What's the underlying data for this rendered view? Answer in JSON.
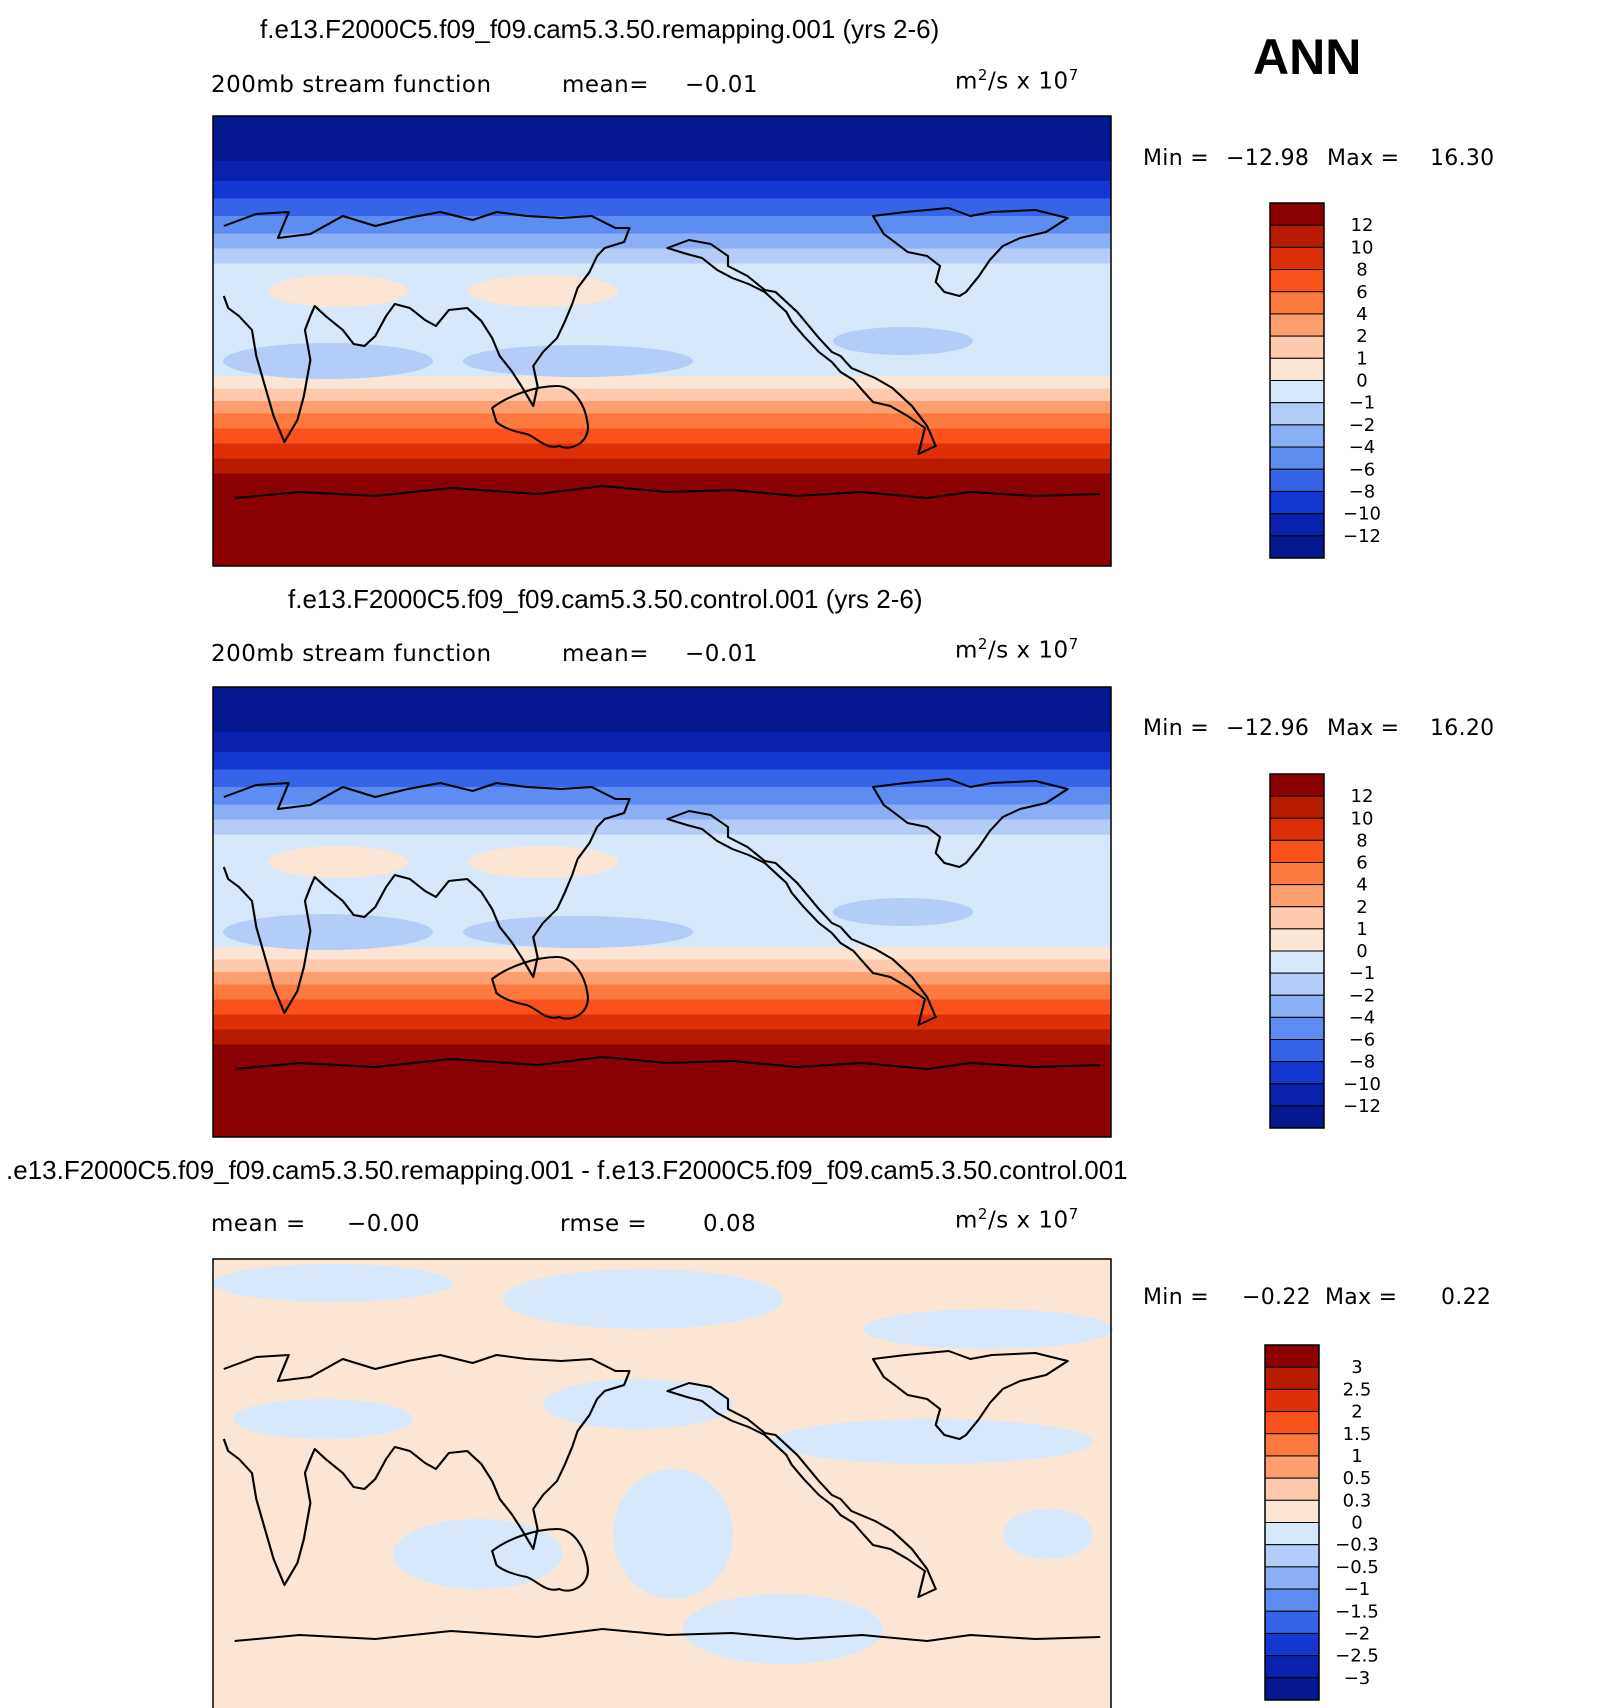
{
  "season": "ANN",
  "panels": [
    {
      "title": "f.e13.F2000C5.f09_f09.cam5.3.50.remapping.001 (yrs 2-6)",
      "left_label": "200mb stream function",
      "stat1_label": "mean=",
      "stat1_value": "−0.01",
      "units_base": "m",
      "units_exp": "2",
      "units_mid": "/s x 10",
      "units_exp2": "7",
      "min_label": "Min =",
      "min_value": "−12.98",
      "max_label": "Max =",
      "max_value": "16.30",
      "colorbar_labels": [
        "12",
        "10",
        "8",
        "6",
        "4",
        "2",
        "1",
        "0",
        "−1",
        "−2",
        "−4",
        "−6",
        "−8",
        "−10",
        "−12"
      ],
      "colorbar_colors": [
        "#8b0000",
        "#b81c00",
        "#dd3008",
        "#f9531b",
        "#fc7a3e",
        "#fd9e6e",
        "#fec9ac",
        "#fbe6d5",
        "#d6e8fa",
        "#b3cdf8",
        "#8aaff5",
        "#5e8df1",
        "#3564e8",
        "#1338d2",
        "#0822ad",
        "#041990"
      ],
      "field_bands": [
        {
          "lat_top": 90,
          "lat_bot": 72,
          "color": "#041990"
        },
        {
          "lat_top": 72,
          "lat_bot": 64,
          "color": "#0822ad"
        },
        {
          "lat_top": 64,
          "lat_bot": 57,
          "color": "#1338d2"
        },
        {
          "lat_top": 57,
          "lat_bot": 50,
          "color": "#3564e8"
        },
        {
          "lat_top": 50,
          "lat_bot": 43,
          "color": "#5e8df1"
        },
        {
          "lat_top": 43,
          "lat_bot": 37,
          "color": "#8aaff5"
        },
        {
          "lat_top": 37,
          "lat_bot": 31,
          "color": "#b3cdf8"
        },
        {
          "lat_top": 31,
          "lat_bot": -14,
          "color": "#d6e8fa"
        },
        {
          "lat_top": -14,
          "lat_bot": -19,
          "color": "#fbe6d5"
        },
        {
          "lat_top": -19,
          "lat_bot": -24,
          "color": "#fec9ac"
        },
        {
          "lat_top": -24,
          "lat_bot": -29,
          "color": "#fd9e6e"
        },
        {
          "lat_top": -29,
          "lat_bot": -35,
          "color": "#fc7a3e"
        },
        {
          "lat_top": -35,
          "lat_bot": -41,
          "color": "#f9531b"
        },
        {
          "lat_top": -41,
          "lat_bot": -47,
          "color": "#dd3008"
        },
        {
          "lat_top": -47,
          "lat_bot": -53,
          "color": "#b81c00"
        },
        {
          "lat_top": -53,
          "lat_bot": -90,
          "color": "#8b0000"
        }
      ]
    },
    {
      "title": "f.e13.F2000C5.f09_f09.cam5.3.50.control.001 (yrs 2-6)",
      "left_label": "200mb stream function",
      "stat1_label": "mean=",
      "stat1_value": "−0.01",
      "units_base": "m",
      "units_exp": "2",
      "units_mid": "/s x 10",
      "units_exp2": "7",
      "min_label": "Min =",
      "min_value": "−12.96",
      "max_label": "Max =",
      "max_value": "16.20",
      "colorbar_labels": [
        "12",
        "10",
        "8",
        "6",
        "4",
        "2",
        "1",
        "0",
        "−1",
        "−2",
        "−4",
        "−6",
        "−8",
        "−10",
        "−12"
      ],
      "colorbar_colors": [
        "#8b0000",
        "#b81c00",
        "#dd3008",
        "#f9531b",
        "#fc7a3e",
        "#fd9e6e",
        "#fec9ac",
        "#fbe6d5",
        "#d6e8fa",
        "#b3cdf8",
        "#8aaff5",
        "#5e8df1",
        "#3564e8",
        "#1338d2",
        "#0822ad",
        "#041990"
      ],
      "field_bands": [
        {
          "lat_top": 90,
          "lat_bot": 72,
          "color": "#041990"
        },
        {
          "lat_top": 72,
          "lat_bot": 64,
          "color": "#0822ad"
        },
        {
          "lat_top": 64,
          "lat_bot": 57,
          "color": "#1338d2"
        },
        {
          "lat_top": 57,
          "lat_bot": 50,
          "color": "#3564e8"
        },
        {
          "lat_top": 50,
          "lat_bot": 43,
          "color": "#5e8df1"
        },
        {
          "lat_top": 43,
          "lat_bot": 37,
          "color": "#8aaff5"
        },
        {
          "lat_top": 37,
          "lat_bot": 31,
          "color": "#b3cdf8"
        },
        {
          "lat_top": 31,
          "lat_bot": -14,
          "color": "#d6e8fa"
        },
        {
          "lat_top": -14,
          "lat_bot": -19,
          "color": "#fbe6d5"
        },
        {
          "lat_top": -19,
          "lat_bot": -24,
          "color": "#fec9ac"
        },
        {
          "lat_top": -24,
          "lat_bot": -29,
          "color": "#fd9e6e"
        },
        {
          "lat_top": -29,
          "lat_bot": -35,
          "color": "#fc7a3e"
        },
        {
          "lat_top": -35,
          "lat_bot": -41,
          "color": "#f9531b"
        },
        {
          "lat_top": -41,
          "lat_bot": -47,
          "color": "#dd3008"
        },
        {
          "lat_top": -47,
          "lat_bot": -53,
          "color": "#b81c00"
        },
        {
          "lat_top": -53,
          "lat_bot": -90,
          "color": "#8b0000"
        }
      ]
    },
    {
      "title": ".e13.F2000C5.f09_f09.cam5.3.50.remapping.001 - f.e13.F2000C5.f09_f09.cam5.3.50.control.001",
      "left_label": "mean =",
      "stat1_label": "",
      "stat1_value": "−0.00",
      "stat2_label": "rmse =",
      "stat2_value": "0.08",
      "units_base": "m",
      "units_exp": "2",
      "units_mid": "/s x 10",
      "units_exp2": "7",
      "min_label": "Min =",
      "min_value": "−0.22",
      "max_label": "Max =",
      "max_value": "0.22",
      "colorbar_labels": [
        "3",
        "2.5",
        "2",
        "1.5",
        "1",
        "0.5",
        "0.3",
        "0",
        "−0.3",
        "−0.5",
        "−1",
        "−1.5",
        "−2",
        "−2.5",
        "−3"
      ],
      "colorbar_colors": [
        "#8b0000",
        "#b81c00",
        "#dd3008",
        "#f9531b",
        "#fc7a3e",
        "#fd9e6e",
        "#fec9ac",
        "#fbe6d5",
        "#d6e8fa",
        "#b3cdf8",
        "#8aaff5",
        "#5e8df1",
        "#3564e8",
        "#1338d2",
        "#0822ad",
        "#041990"
      ],
      "field_bands": [
        {
          "lat_top": 90,
          "lat_bot": -90,
          "color": "#fbe6d5"
        }
      ]
    }
  ]
}
